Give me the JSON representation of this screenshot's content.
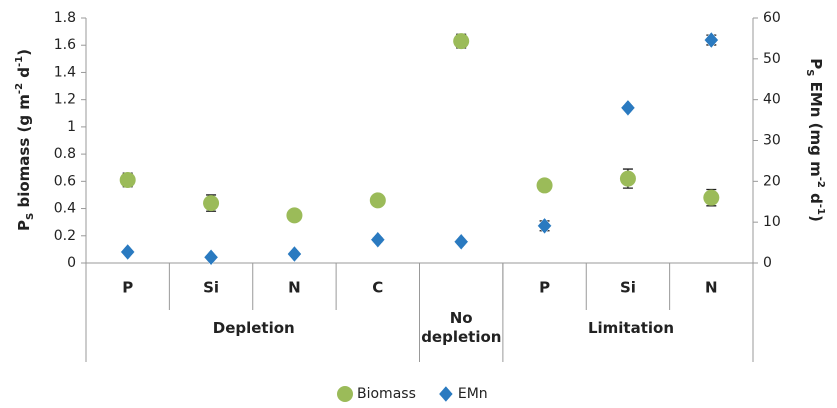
{
  "chart_data": {
    "type": "scatter",
    "ylabel": [
      "P",
      "S",
      " biomass (g m",
      "-2",
      " d",
      "-1",
      ")"
    ],
    "y2label": [
      "P",
      "S",
      " EMn (mg m",
      "-2",
      " d",
      "-1",
      ")"
    ],
    "categories": [
      "P",
      "Si",
      "N",
      "C",
      null,
      "P",
      "Si",
      "N"
    ],
    "groups": [
      {
        "name": "Depletion",
        "categories": [
          "P",
          "Si",
          "N",
          "C"
        ]
      },
      {
        "name": "No depletion",
        "categories": [
          null
        ]
      },
      {
        "name": "Limitation",
        "categories": [
          "P",
          "Si",
          "N"
        ]
      }
    ],
    "series": [
      {
        "name": "Biomass",
        "color": "#9bbb59",
        "marker": "circle",
        "values": [
          0.61,
          0.44,
          0.35,
          0.46,
          1.63,
          0.57,
          0.62,
          0.48
        ],
        "errors": [
          0.05,
          0.06,
          0.01,
          0.01,
          0.05,
          0.04,
          0.07,
          0.06
        ]
      },
      {
        "name": "EMn",
        "color": "#2a7ac0",
        "marker": "diamond",
        "axis": "y2",
        "values": [
          2.7,
          1.4,
          2.2,
          5.7,
          5.2,
          9.1,
          38,
          54.6
        ],
        "errors": [
          0.3,
          0.2,
          0.2,
          0.5,
          0.3,
          1.2,
          0.5,
          1.2
        ]
      }
    ],
    "ylim": [
      0,
      1.8
    ],
    "yticks": [
      0,
      0.2,
      0.4,
      0.6,
      0.8,
      1,
      1.2,
      1.4,
      1.6,
      1.8
    ],
    "y2lim": [
      0,
      60
    ],
    "y2ticks": [
      0,
      10,
      20,
      30,
      40,
      50,
      60
    ],
    "legend": "bottom"
  }
}
